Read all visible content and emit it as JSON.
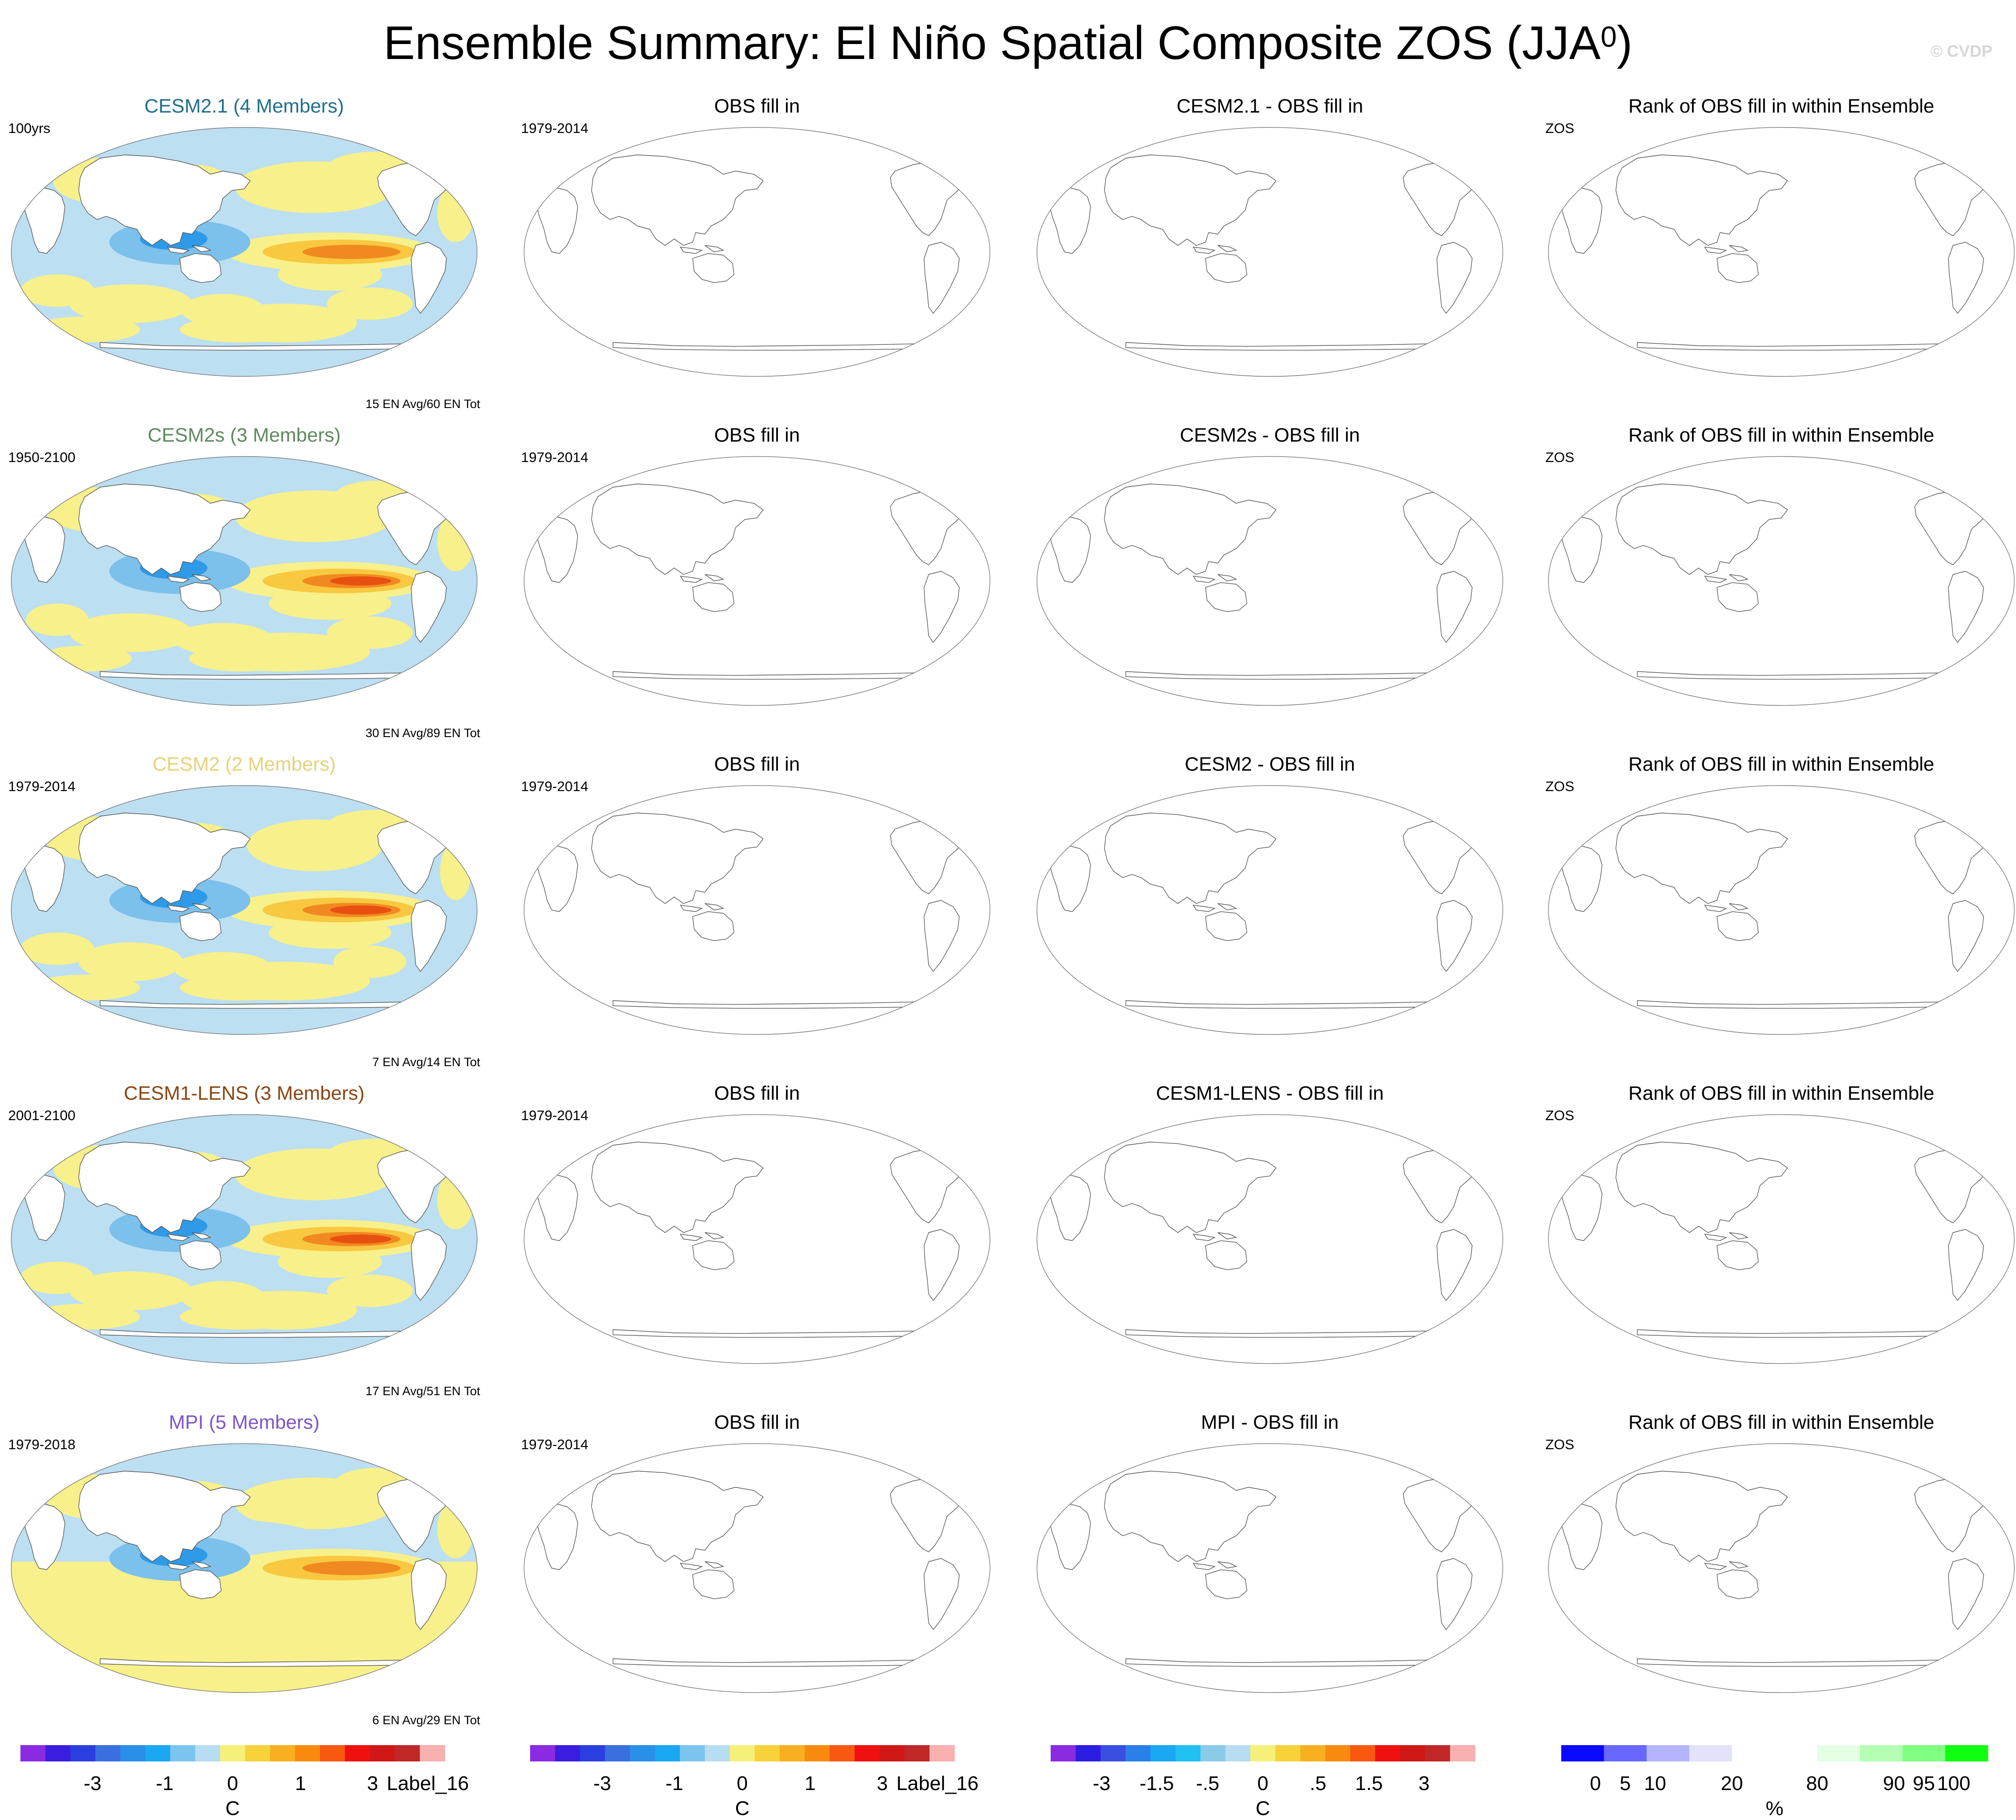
{
  "title": {
    "main": "Ensemble Summary: El Niño Spatial Composite ZOS (JJA",
    "sup": "0",
    "close": ")"
  },
  "credit": "© CVDP",
  "rows": [
    {
      "model": "CESM2.1 (4 Members)",
      "model_color": "#1f6f8b",
      "period": "100yrs",
      "events": "15 EN Avg/60 EN Tot",
      "obs_title": "OBS fill in",
      "obs_period": "1979-2014",
      "diff_title": "CESM2.1 - OBS fill in",
      "rank_title": "Rank of OBS fill in within Ensemble",
      "rank_var": "ZOS"
    },
    {
      "model": "CESM2s (3 Members)",
      "model_color": "#5f8a5f",
      "period": "1950-2100",
      "events": "30 EN Avg/89 EN Tot",
      "obs_title": "OBS fill in",
      "obs_period": "1979-2014",
      "diff_title": "CESM2s - OBS fill in",
      "rank_title": "Rank of OBS fill in within Ensemble",
      "rank_var": "ZOS"
    },
    {
      "model": "CESM2 (2 Members)",
      "model_color": "#e6d27a",
      "period": "1979-2014",
      "events": "7 EN Avg/14 EN Tot",
      "obs_title": "OBS fill in",
      "obs_period": "1979-2014",
      "diff_title": "CESM2 - OBS fill in",
      "rank_title": "Rank of OBS fill in within Ensemble",
      "rank_var": "ZOS"
    },
    {
      "model": "CESM1-LENS (3 Members)",
      "model_color": "#8b4513",
      "period": "2001-2100",
      "events": "17 EN Avg/51 EN Tot",
      "obs_title": "OBS fill in",
      "obs_period": "1979-2014",
      "diff_title": "CESM1-LENS - OBS fill in",
      "rank_title": "Rank of OBS fill in within Ensemble",
      "rank_var": "ZOS"
    },
    {
      "model": "MPI (5 Members)",
      "model_color": "#7e55c8",
      "period": "1979-2018",
      "events": "6 EN Avg/29 EN Tot",
      "obs_title": "OBS fill in",
      "obs_period": "1979-2014",
      "diff_title": "MPI - OBS fill in",
      "rank_title": "Rank of OBS fill in within Ensemble",
      "rank_var": "ZOS"
    }
  ],
  "colorbars": [
    {
      "unit": "C",
      "ticks": [
        "-3",
        "-1",
        "0",
        "1",
        "3",
        "Label_16"
      ],
      "colors": [
        "#8a2be2",
        "#3a1ee0",
        "#2b3fe0",
        "#3a6fe0",
        "#2a8fe8",
        "#1aa8f0",
        "#7cc4f0",
        "#b8dcf0",
        "#f6f07a",
        "#f8d23a",
        "#f8b020",
        "#f88a10",
        "#f85810",
        "#f01010",
        "#d01818",
        "#c02828",
        "#f8b0b0"
      ]
    },
    {
      "unit": "C",
      "ticks": [
        "-3",
        "-1",
        "0",
        "1",
        "3",
        "Label_16"
      ],
      "colors": [
        "#8a2be2",
        "#3a1ee0",
        "#2b3fe0",
        "#3a6fe0",
        "#2a8fe8",
        "#1aa8f0",
        "#7cc4f0",
        "#b8dcf0",
        "#f6f07a",
        "#f8d23a",
        "#f8b020",
        "#f88a10",
        "#f85810",
        "#f01010",
        "#d01818",
        "#c02828",
        "#f8b0b0"
      ]
    },
    {
      "unit": "C",
      "ticks": [
        "-3",
        "-1.5",
        "-.5",
        "0",
        ".5",
        "1.5",
        "3"
      ],
      "colors": [
        "#8a2be2",
        "#2b1ee0",
        "#3a4fe0",
        "#2a7fe8",
        "#1aa8f0",
        "#20c0f0",
        "#8acbe8",
        "#b8dcf0",
        "#f6f07a",
        "#f8d23a",
        "#f8b020",
        "#f88a10",
        "#f85810",
        "#f01010",
        "#d01818",
        "#c02828",
        "#f8b0b0"
      ]
    },
    {
      "unit": "%",
      "ticks": [
        "0",
        "5",
        "10",
        "20",
        "80",
        "90",
        "95",
        "100"
      ],
      "colors": [
        "#0a0aff",
        "#6868ff",
        "#b4b4ff",
        "#e2e2fa",
        "#ffffff",
        "#ffffff",
        "#e4ffe4",
        "#b4ffb4",
        "#80ff80",
        "#10ff10"
      ]
    }
  ],
  "map_colors": {
    "pos_light": "#f8f08a",
    "pos_mid": "#f8c840",
    "pos_strong": "#f08a20",
    "pos_max": "#e85010",
    "neg_light": "#bcdff2",
    "neg_mid": "#7cc0ec",
    "neg_strong": "#2e9ae8"
  }
}
